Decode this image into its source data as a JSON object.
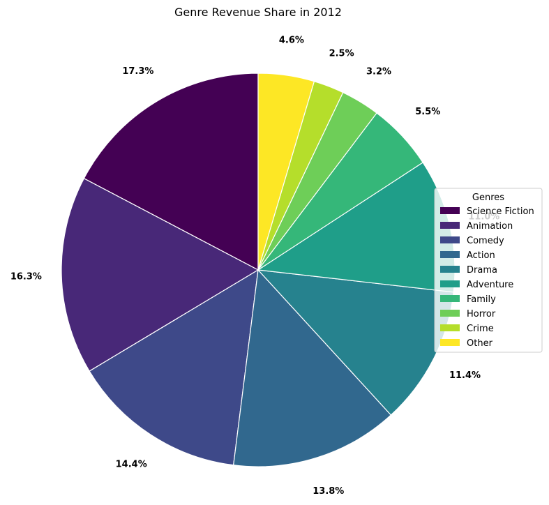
{
  "chart_data": {
    "type": "pie",
    "title": "Genre Revenue Share in 2012",
    "legend": {
      "title": "Genres",
      "placement": "right"
    },
    "categories": [
      "Science Fiction",
      "Animation",
      "Comedy",
      "Action",
      "Drama",
      "Adventure",
      "Family",
      "Horror",
      "Crime",
      "Other"
    ],
    "values": [
      17.3,
      16.3,
      14.4,
      13.8,
      11.4,
      11.0,
      5.5,
      3.2,
      2.5,
      4.6
    ],
    "labels": [
      "17.3%",
      "16.3%",
      "14.4%",
      "13.8%",
      "11.4%",
      "11.0%",
      "5.5%",
      "3.2%",
      "2.5%",
      "4.6%"
    ],
    "colors": [
      "#440154",
      "#482878",
      "#3e4989",
      "#31688e",
      "#26828e",
      "#1f9e89",
      "#35b779",
      "#6ece58",
      "#b5de2b",
      "#fde725"
    ]
  }
}
